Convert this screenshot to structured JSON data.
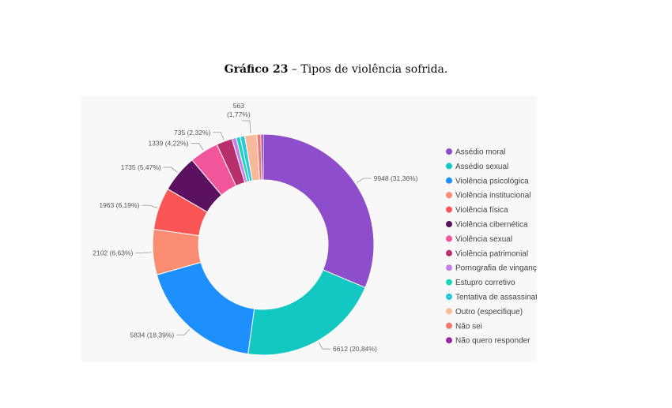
{
  "caption": {
    "label": "Gráfico 23",
    "separator": " – ",
    "title": "Tipos de violência sofrida."
  },
  "chart_data": {
    "type": "pie",
    "variant": "donut",
    "legend_position": "right",
    "series": [
      {
        "name": "Assédio moral",
        "value": 9948,
        "label": "9948 (31,36%)",
        "color": "#8e4ecb"
      },
      {
        "name": "Assédio sexual",
        "value": 6612,
        "label": "6612 (20,84%)",
        "color": "#13c8c2"
      },
      {
        "name": "Violência psicológica",
        "value": 5834,
        "label": "5834 (18,39%)",
        "color": "#1e8fff"
      },
      {
        "name": "Violência institucional",
        "value": 2102,
        "label": "2102 (6,63%)",
        "color": "#fa8c72"
      },
      {
        "name": "Violência física",
        "value": 1963,
        "label": "1963 (6,19%)",
        "color": "#fb5555"
      },
      {
        "name": "Violência cibernética",
        "value": 1735,
        "label": "1735 (5,47%)",
        "color": "#5c1160"
      },
      {
        "name": "Violência sexual",
        "value": 1339,
        "label": "1339 (4,22%)",
        "color": "#f1559a"
      },
      {
        "name": "Violência patrimonial",
        "value": 735,
        "label": "735 (2,32%)",
        "color": "#b8306b"
      },
      {
        "name": "Pornografia de vingança",
        "value": 200,
        "label": "",
        "color": "#c680ee"
      },
      {
        "name": "Estupro corretivo",
        "value": 190,
        "label": "",
        "color": "#1ad6b8"
      },
      {
        "name": "Tentativa de assassinato",
        "value": 210,
        "label": "",
        "color": "#2ec6dc"
      },
      {
        "name": "Outro (especifique)",
        "value": 563,
        "label": "563 (1,77%)",
        "color": "#f8b99a"
      },
      {
        "name": "Não sei",
        "value": 180,
        "label": "",
        "color": "#f07870"
      },
      {
        "name": "Não quero responder",
        "value": 110,
        "label": "",
        "color": "#932a9f"
      }
    ]
  }
}
